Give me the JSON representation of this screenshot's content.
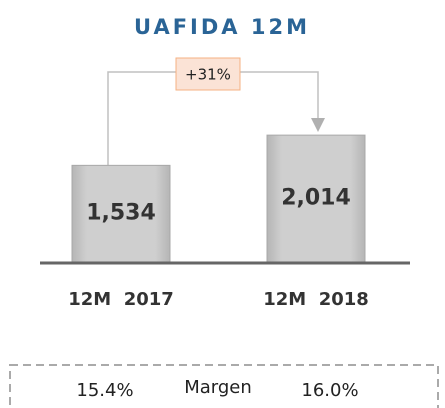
{
  "chart_data": {
    "type": "bar",
    "title": "UAFIDA 12M",
    "categories": [
      "12M  2017",
      "12M  2018"
    ],
    "values": [
      1534,
      2014
    ],
    "value_labels": [
      "1,534",
      "2,014"
    ],
    "color": "#c8c8c8",
    "annotation": "+31%",
    "footer": {
      "label": "Margen",
      "values": [
        "15.4%",
        "16.0%"
      ]
    }
  }
}
